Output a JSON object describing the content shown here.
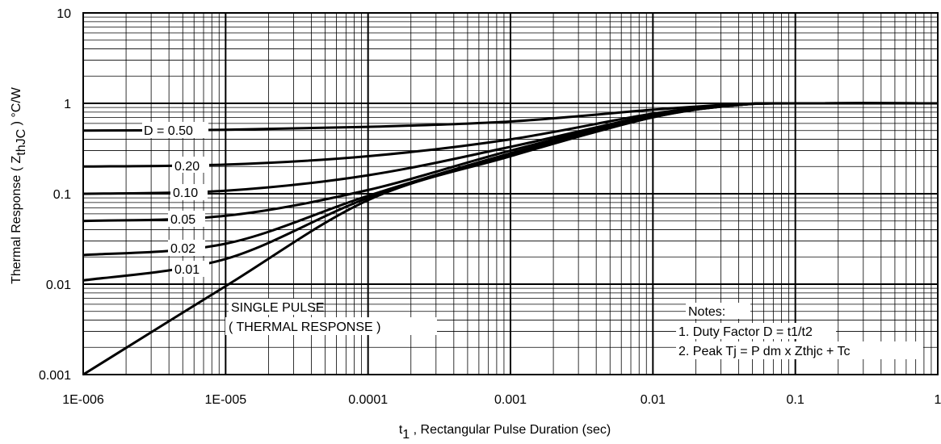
{
  "chart_data": {
    "type": "line",
    "title": "",
    "xlabel_main": "t",
    "xlabel_sub": "1",
    "xlabel_rest": " , Rectangular Pulse Duration (sec)",
    "ylabel_main": "Thermal Response ( Z",
    "ylabel_sub": "thJC",
    "ylabel_rest": " ) °C/W",
    "xscale": "log",
    "yscale": "log",
    "xlim": [
      1e-06,
      1
    ],
    "ylim": [
      0.001,
      10
    ],
    "grid": true,
    "xticks": [
      {
        "value": 1e-06,
        "label": "1E-006"
      },
      {
        "value": 1e-05,
        "label": "1E-005"
      },
      {
        "value": 0.0001,
        "label": "0.0001"
      },
      {
        "value": 0.001,
        "label": "0.001"
      },
      {
        "value": 0.01,
        "label": "0.01"
      },
      {
        "value": 0.1,
        "label": "0.1"
      },
      {
        "value": 1,
        "label": "1"
      }
    ],
    "yticks": [
      {
        "value": 0.001,
        "label": "0.001"
      },
      {
        "value": 0.01,
        "label": "0.01"
      },
      {
        "value": 0.1,
        "label": "0.1"
      },
      {
        "value": 1,
        "label": "1"
      },
      {
        "value": 10,
        "label": "10"
      }
    ],
    "series": [
      {
        "name": "D = 0.50",
        "x": [
          1e-06,
          1e-05,
          0.0001,
          0.001,
          0.01,
          0.04,
          0.1,
          1
        ],
        "y": [
          0.5,
          0.51,
          0.55,
          0.63,
          0.85,
          0.98,
          1.0,
          1.0
        ]
      },
      {
        "name": "0.20",
        "x": [
          1e-06,
          1e-05,
          0.0001,
          0.001,
          0.01,
          0.04,
          0.1,
          1
        ],
        "y": [
          0.2,
          0.21,
          0.26,
          0.4,
          0.77,
          0.97,
          1.0,
          1.0
        ]
      },
      {
        "name": "0.10",
        "x": [
          1e-06,
          1e-05,
          0.0001,
          0.001,
          0.01,
          0.04,
          0.1,
          1
        ],
        "y": [
          0.1,
          0.108,
          0.16,
          0.33,
          0.74,
          0.96,
          1.0,
          1.0
        ]
      },
      {
        "name": "0.05",
        "x": [
          1e-06,
          1e-05,
          0.0001,
          0.001,
          0.01,
          0.04,
          0.1,
          1
        ],
        "y": [
          0.05,
          0.057,
          0.11,
          0.3,
          0.72,
          0.96,
          1.0,
          1.0
        ]
      },
      {
        "name": "0.02",
        "x": [
          1e-06,
          1e-05,
          0.0001,
          0.001,
          0.01,
          0.04,
          0.1,
          1
        ],
        "y": [
          0.021,
          0.028,
          0.095,
          0.28,
          0.71,
          0.96,
          1.0,
          1.0
        ]
      },
      {
        "name": "0.01",
        "x": [
          1e-06,
          1e-05,
          0.0001,
          0.001,
          0.01,
          0.04,
          0.1,
          1
        ],
        "y": [
          0.011,
          0.019,
          0.09,
          0.27,
          0.7,
          0.96,
          1.0,
          1.0
        ]
      },
      {
        "name": "SINGLE PULSE",
        "x": [
          1e-06,
          1e-05,
          0.0001,
          0.001,
          0.01,
          0.04,
          0.1,
          1
        ],
        "y": [
          0.001,
          0.0095,
          0.085,
          0.26,
          0.7,
          0.96,
          1.0,
          1.0
        ]
      }
    ],
    "annotations": {
      "d050": "D = 0.50",
      "d020": "0.20",
      "d010": "0.10",
      "d005": "0.05",
      "d002": "0.02",
      "d001": "0.01",
      "single1": "SINGLE PULSE",
      "single2": "( THERMAL RESPONSE )",
      "notes_title": "Notes:",
      "note1": "1. Duty Factor D = t1/t2",
      "note2": "2. Peak Tj = P dm x Zthjc + Tc"
    }
  }
}
